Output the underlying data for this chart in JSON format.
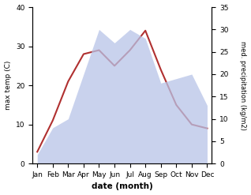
{
  "months": [
    "Jan",
    "Feb",
    "Mar",
    "Apr",
    "May",
    "Jun",
    "Jul",
    "Aug",
    "Sep",
    "Oct",
    "Nov",
    "Dec"
  ],
  "temperature": [
    3,
    11,
    21,
    28,
    29,
    25,
    29,
    34,
    24,
    15,
    10,
    9
  ],
  "precipitation": [
    2,
    8,
    10,
    20,
    30,
    27,
    30,
    28,
    18,
    19,
    20,
    13
  ],
  "temp_ylim": [
    0,
    40
  ],
  "precip_ylim": [
    0,
    35
  ],
  "temp_yticks": [
    0,
    10,
    20,
    30,
    40
  ],
  "precip_yticks": [
    0,
    5,
    10,
    15,
    20,
    25,
    30,
    35
  ],
  "temp_color": "#b03030",
  "precip_fill_color": "#b8c4e8",
  "ylabel_left": "max temp (C)",
  "ylabel_right": "med. precipitation (kg/m2)",
  "xlabel": "date (month)",
  "background_color": "#ffffff"
}
